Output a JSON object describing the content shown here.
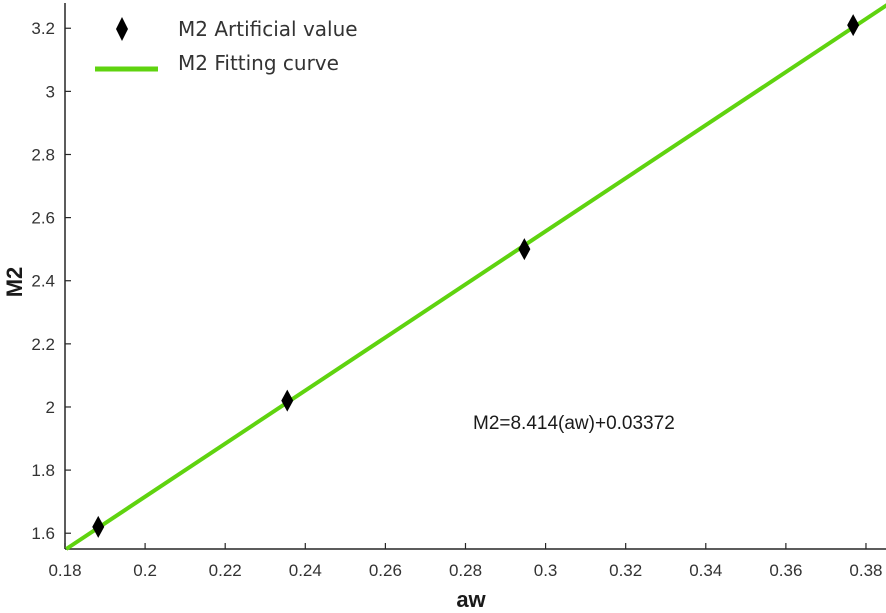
{
  "chart_data": {
    "type": "scatter",
    "xlabel": "aw",
    "ylabel": "M2",
    "xlim": [
      0.18,
      0.385
    ],
    "ylim": [
      1.55,
      3.28
    ],
    "x_ticks": [
      "0.18",
      "0.2",
      "0.22",
      "0.24",
      "0.26",
      "0.28",
      "0.3",
      "0.32",
      "0.34",
      "0.36",
      "0.38"
    ],
    "y_ticks": [
      "1.6",
      "1.8",
      "2",
      "2.2",
      "2.4",
      "2.6",
      "2.8",
      "3",
      "3.2"
    ],
    "grid": false,
    "legend_position": "top-left",
    "series": [
      {
        "name": "M2 Artificial value",
        "kind": "scatter",
        "marker": "diamond",
        "color": "#000000",
        "x": [
          0.1883,
          0.2355,
          0.2947,
          0.3768
        ],
        "y": [
          1.62,
          2.02,
          2.5,
          3.21
        ]
      },
      {
        "name": "M2 Fitting curve",
        "kind": "line",
        "color": "#5fd30f",
        "x": [
          0.1803,
          0.386
        ],
        "y": [
          1.55,
          3.28
        ]
      }
    ],
    "annotations": [
      {
        "text": "M2=8.414(aw)+0.03372"
      }
    ]
  }
}
